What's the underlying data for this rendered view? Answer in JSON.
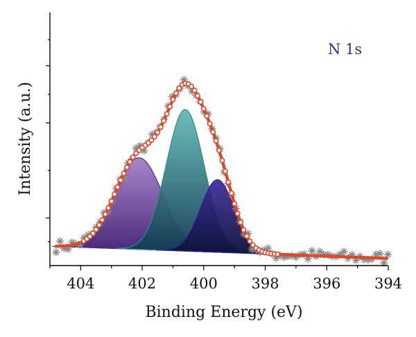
{
  "chart_data": {
    "type": "area",
    "title": "",
    "annotation": "N 1s",
    "xlabel": "Binding Energy (eV)",
    "ylabel": "Intensity (a.u.)",
    "xlim": [
      405,
      394
    ],
    "ylim": [
      0,
      1
    ],
    "x_reversed": true,
    "x_ticks": [
      404,
      402,
      400,
      398,
      396,
      394
    ],
    "y_tick_labels": false,
    "grid": false,
    "legend": "none",
    "baseline": {
      "x": [
        404.6,
        394
      ],
      "y": [
        0.08,
        0.03
      ]
    },
    "series": [
      {
        "kind": "peak",
        "center": 402.1,
        "height": 0.385,
        "sigma": 0.78,
        "color_top": "#a27cc6",
        "color_bottom": "#3f1f72",
        "stroke": "#4e2a88"
      },
      {
        "kind": "peak",
        "center": 400.6,
        "height": 0.595,
        "sigma": 0.62,
        "color_top": "#5fb8b3",
        "color_bottom": "#123a52",
        "stroke": "#2a8f8f"
      },
      {
        "kind": "peak",
        "center": 399.55,
        "height": 0.305,
        "sigma": 0.55,
        "color_top": "#3a2a9a",
        "color_bottom": "#0c1236",
        "stroke": "#2b2398"
      },
      {
        "kind": "fit",
        "style": "circles",
        "color": "#d94b2b"
      },
      {
        "kind": "raw",
        "style": "stars",
        "color": "#8a8a8a"
      }
    ],
    "colors": {
      "annotation": "#3b2c8c",
      "fit": "#d94b2b",
      "raw": "#8a8a8a"
    }
  }
}
